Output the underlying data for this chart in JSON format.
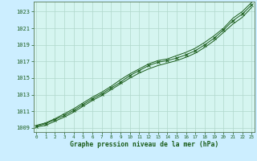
{
  "xlabel": "Graphe pression niveau de la mer (hPa)",
  "outer_bg": "#cceeff",
  "plot_bg_color": "#d5f5f0",
  "grid_color": "#b0d8cc",
  "line_color": "#1a5c1a",
  "xlim": [
    -0.3,
    23.3
  ],
  "ylim": [
    1008.5,
    1024.2
  ],
  "yticks": [
    1009,
    1011,
    1013,
    1015,
    1017,
    1019,
    1021,
    1023
  ],
  "xticks": [
    0,
    1,
    2,
    3,
    4,
    5,
    6,
    7,
    8,
    9,
    10,
    11,
    12,
    13,
    14,
    15,
    16,
    17,
    18,
    19,
    20,
    21,
    22,
    23
  ],
  "series1": [
    1009.1,
    1009.3,
    1009.8,
    1010.3,
    1010.9,
    1011.6,
    1012.3,
    1012.9,
    1013.6,
    1014.3,
    1015.0,
    1015.6,
    1016.1,
    1016.5,
    1016.8,
    1017.1,
    1017.5,
    1018.0,
    1018.7,
    1019.5,
    1020.5,
    1021.5,
    1022.3,
    1023.5
  ],
  "series2": [
    1009.2,
    1009.5,
    1010.0,
    1010.5,
    1011.1,
    1011.8,
    1012.5,
    1013.1,
    1013.8,
    1014.5,
    1015.3,
    1015.9,
    1016.5,
    1016.9,
    1017.1,
    1017.4,
    1017.8,
    1018.3,
    1019.0,
    1019.8,
    1020.8,
    1021.9,
    1022.7,
    1023.8
  ],
  "series3": [
    1009.3,
    1009.6,
    1010.1,
    1010.7,
    1011.3,
    1012.0,
    1012.7,
    1013.3,
    1014.0,
    1014.8,
    1015.5,
    1016.1,
    1016.7,
    1017.1,
    1017.3,
    1017.7,
    1018.1,
    1018.6,
    1019.3,
    1020.1,
    1021.0,
    1022.2,
    1023.0,
    1024.1
  ]
}
